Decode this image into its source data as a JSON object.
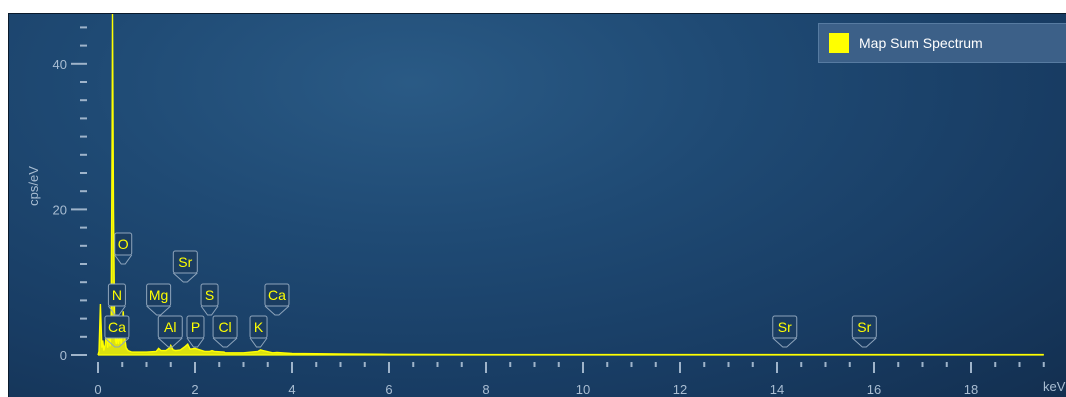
{
  "chart_data": {
    "type": "line",
    "title": "",
    "xlabel": "keV",
    "ylabel": "cps/eV",
    "xlim": [
      0,
      19.5
    ],
    "ylim": [
      0,
      46
    ],
    "x_ticks": [
      0,
      2,
      4,
      6,
      8,
      10,
      12,
      14,
      16,
      18
    ],
    "y_ticks": [
      0,
      20,
      40
    ],
    "legend_position": "top-right",
    "series": [
      {
        "name": "Map Sum Spectrum",
        "color": "#ffff00",
        "x": [
          0.0,
          0.02,
          0.05,
          0.08,
          0.1,
          0.12,
          0.15,
          0.18,
          0.2,
          0.22,
          0.25,
          0.27,
          0.29,
          0.3,
          0.32,
          0.34,
          0.36,
          0.38,
          0.4,
          0.42,
          0.45,
          0.48,
          0.5,
          0.52,
          0.55,
          0.58,
          0.62,
          0.7,
          0.8,
          1.0,
          1.2,
          1.25,
          1.3,
          1.4,
          1.48,
          1.5,
          1.55,
          1.6,
          1.7,
          1.8,
          1.85,
          1.9,
          2.0,
          2.2,
          2.3,
          2.35,
          2.4,
          2.6,
          2.62,
          2.7,
          3.0,
          3.3,
          3.35,
          3.4,
          3.6,
          3.69,
          3.8,
          4.0,
          5.0,
          6.0,
          8.0,
          10.0,
          12.0,
          14.0,
          14.16,
          14.5,
          15.8,
          16.0,
          18.0,
          19.5
        ],
        "y": [
          0,
          0.5,
          7.0,
          1.0,
          2.0,
          0.6,
          1.5,
          3.5,
          1.0,
          3.0,
          1.2,
          4.0,
          30.0,
          48.0,
          20.0,
          6.0,
          2.0,
          1.5,
          3.0,
          1.5,
          2.5,
          1.5,
          3.5,
          6.0,
          2.5,
          1.0,
          0.6,
          0.4,
          0.4,
          0.4,
          0.5,
          0.9,
          0.6,
          0.6,
          1.0,
          1.3,
          0.7,
          0.6,
          0.7,
          1.2,
          1.5,
          0.8,
          0.9,
          0.5,
          0.5,
          0.6,
          0.5,
          0.4,
          0.3,
          0.3,
          0.3,
          0.5,
          0.7,
          0.6,
          0.3,
          0.35,
          0.3,
          0.2,
          0.15,
          0.1,
          0.05,
          0.05,
          0.05,
          0.05,
          0.05,
          0.05,
          0.05,
          0.05,
          0.05,
          0.05
        ]
      }
    ],
    "peak_labels": [
      {
        "label": "O",
        "x": 0.52,
        "level": 4
      },
      {
        "label": "N",
        "x": 0.39,
        "level": 2
      },
      {
        "label": "Ca",
        "x": 0.39,
        "level": 1
      },
      {
        "label": "Mg",
        "x": 1.25,
        "level": 2
      },
      {
        "label": "Sr",
        "x": 1.8,
        "level": 3
      },
      {
        "label": "S",
        "x": 2.3,
        "level": 2
      },
      {
        "label": "Al",
        "x": 1.49,
        "level": 1
      },
      {
        "label": "P",
        "x": 2.01,
        "level": 1
      },
      {
        "label": "Cl",
        "x": 2.62,
        "level": 1
      },
      {
        "label": "K",
        "x": 3.31,
        "level": 1
      },
      {
        "label": "Ca",
        "x": 3.69,
        "level": 2
      },
      {
        "label": "Sr",
        "x": 14.16,
        "level": 1
      },
      {
        "label": "Sr",
        "x": 15.8,
        "level": 1
      }
    ]
  }
}
